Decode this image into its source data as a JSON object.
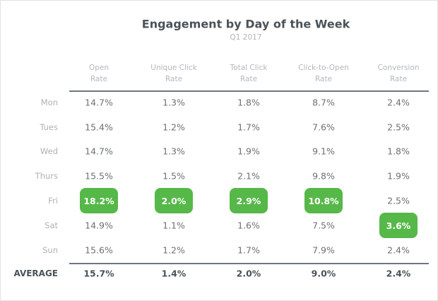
{
  "chart_data": {
    "type": "table",
    "title": "Engagement by Day of the Week",
    "subtitle": "Q1 2017",
    "columns": [
      [
        "Open",
        "Rate"
      ],
      [
        "Unique Click",
        "Rate"
      ],
      [
        "Total Click",
        "Rate"
      ],
      [
        "Click-to-Open",
        "Rate"
      ],
      [
        "Conversion",
        "Rate"
      ]
    ],
    "rows": [
      {
        "label": "Mon",
        "values": [
          "14.7%",
          "1.3%",
          "1.8%",
          "8.7%",
          "2.4%"
        ],
        "highlight": [
          false,
          false,
          false,
          false,
          false
        ]
      },
      {
        "label": "Tues",
        "values": [
          "15.4%",
          "1.2%",
          "1.7%",
          "7.6%",
          "2.5%"
        ],
        "highlight": [
          false,
          false,
          false,
          false,
          false
        ]
      },
      {
        "label": "Wed",
        "values": [
          "14.7%",
          "1.3%",
          "1.9%",
          "9.1%",
          "1.8%"
        ],
        "highlight": [
          false,
          false,
          false,
          false,
          false
        ]
      },
      {
        "label": "Thurs",
        "values": [
          "15.5%",
          "1.5%",
          "2.1%",
          "9.8%",
          "1.9%"
        ],
        "highlight": [
          false,
          false,
          false,
          false,
          false
        ]
      },
      {
        "label": "Fri",
        "values": [
          "18.2%",
          "2.0%",
          "2.9%",
          "10.8%",
          "2.5%"
        ],
        "highlight": [
          true,
          true,
          true,
          true,
          false
        ]
      },
      {
        "label": "Sat",
        "values": [
          "14.9%",
          "1.1%",
          "1.6%",
          "7.5%",
          "3.6%"
        ],
        "highlight": [
          false,
          false,
          false,
          false,
          true
        ]
      },
      {
        "label": "Sun",
        "values": [
          "15.6%",
          "1.2%",
          "1.7%",
          "7.9%",
          "2.4%"
        ],
        "highlight": [
          false,
          false,
          false,
          false,
          false
        ]
      }
    ],
    "average": {
      "label": "AVERAGE",
      "values": [
        "15.7%",
        "1.4%",
        "2.0%",
        "9.0%",
        "2.4%"
      ]
    },
    "colors": {
      "highlight": "#56b848",
      "title": "#4a525a",
      "rule": "#6d7780"
    }
  }
}
